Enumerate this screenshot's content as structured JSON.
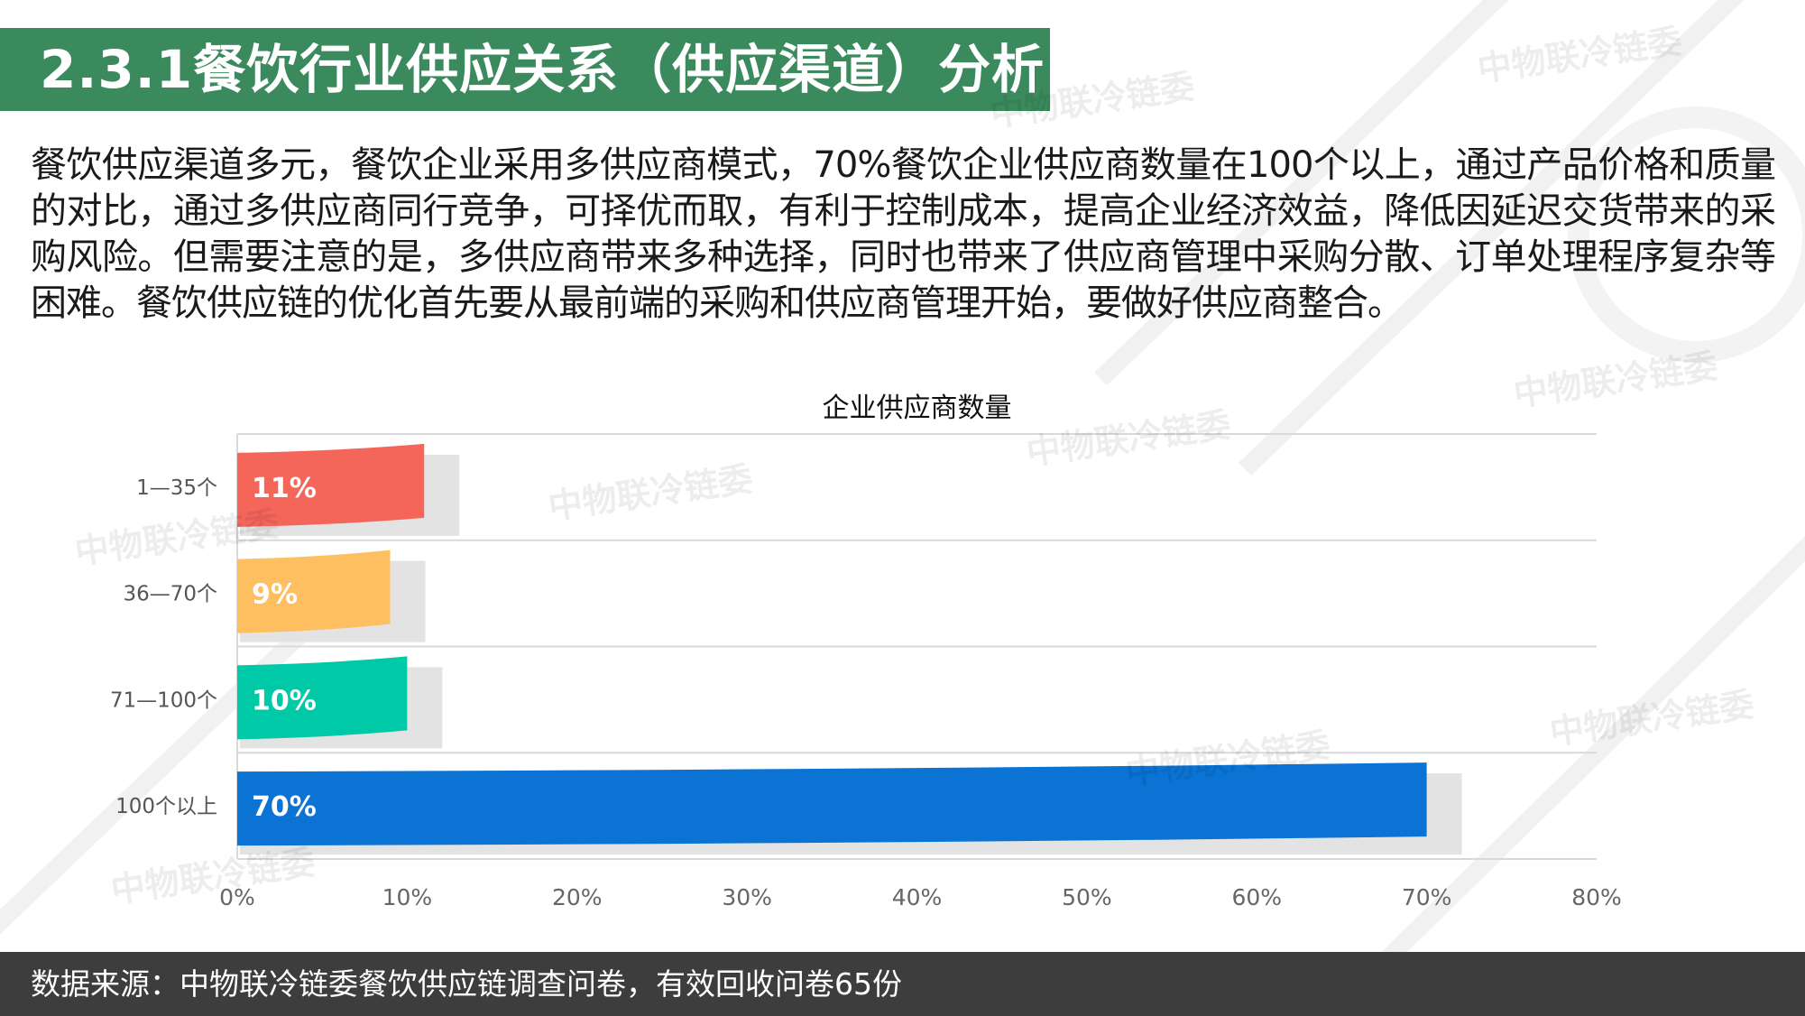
{
  "header": {
    "title": "2.3.1餐饮行业供应关系（供应渠道）分析"
  },
  "body": {
    "paragraph": "餐饮供应渠道多元，餐饮企业采用多供应商模式，70%餐饮企业供应商数量在100个以上，通过产品价格和质量的对比，通过多供应商同行竞争，可择优而取，有利于控制成本，提高企业经济效益，降低因延迟交货带来的采购风险。但需要注意的是，多供应商带来多种选择，同时也带来了供应商管理中采购分散、订单处理程序复杂等困难。餐饮供应链的优化首先要从最前端的采购和供应商管理开始，要做好供应商整合。"
  },
  "watermark": {
    "text": "中物联冷链委"
  },
  "chart_data": {
    "type": "bar",
    "orientation": "horizontal",
    "title": "企业供应商数量",
    "categories": [
      "1—35个",
      "36—70个",
      "71—100个",
      "100个以上"
    ],
    "values": [
      11,
      9,
      10,
      70
    ],
    "data_labels": [
      "11%",
      "9%",
      "10%",
      "70%"
    ],
    "colors": [
      "#f4655a",
      "#fdbf60",
      "#00c9a7",
      "#0a73d4"
    ],
    "xlim": [
      0,
      80
    ],
    "xticks": [
      "0%",
      "10%",
      "20%",
      "30%",
      "40%",
      "50%",
      "60%",
      "70%",
      "80%"
    ],
    "grid": true,
    "xlabel": "",
    "ylabel": ""
  },
  "footer": {
    "source": "数据来源：中物联冷链委餐饮供应链调查问卷，有效回收问卷65份"
  }
}
